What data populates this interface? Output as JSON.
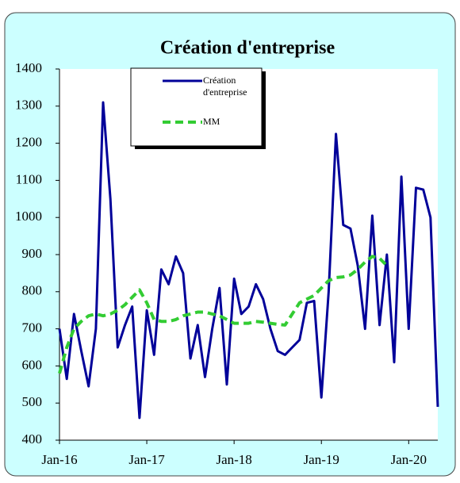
{
  "chart_data": {
    "type": "line",
    "title": "Création d'entreprise",
    "categories": [
      "Jan-16",
      null,
      null,
      null,
      null,
      null,
      null,
      null,
      null,
      null,
      null,
      null,
      "Jan-17",
      null,
      null,
      null,
      null,
      null,
      null,
      null,
      null,
      null,
      null,
      null,
      "Jan-18",
      null,
      null,
      null,
      null,
      null,
      null,
      null,
      null,
      null,
      null,
      null,
      "Jan-19",
      null,
      null,
      null,
      null,
      null,
      null,
      null,
      null,
      null,
      null,
      null,
      "Jan-20",
      null,
      null,
      null,
      null
    ],
    "series": [
      {
        "name": "Création d'entreprise",
        "color": "#000099",
        "dash": false,
        "values": [
          700,
          565,
          740,
          640,
          545,
          700,
          1310,
          1050,
          650,
          710,
          760,
          460,
          750,
          630,
          860,
          820,
          895,
          850,
          620,
          710,
          570,
          700,
          810,
          550,
          835,
          740,
          760,
          820,
          780,
          700,
          640,
          630,
          650,
          670,
          770,
          775,
          515,
          800,
          1225,
          980,
          970,
          870,
          700,
          1005,
          710,
          900,
          610,
          1110,
          700,
          1080,
          1075,
          1000,
          490
        ]
      },
      {
        "name": "MM",
        "color": "#33cc33",
        "dash": true,
        "values": [
          580,
          650,
          700,
          720,
          735,
          740,
          735,
          740,
          750,
          765,
          785,
          805,
          770,
          725,
          720,
          720,
          725,
          735,
          740,
          745,
          745,
          740,
          735,
          725,
          715,
          715,
          715,
          720,
          718,
          715,
          712,
          710,
          740,
          770,
          780,
          790,
          810,
          830,
          838,
          840,
          845,
          860,
          880,
          895,
          890,
          870,
          null,
          null,
          null,
          null,
          null,
          null,
          null
        ]
      }
    ],
    "ylim": [
      400,
      1400
    ],
    "yticks": [
      400,
      500,
      600,
      700,
      800,
      900,
      1000,
      1100,
      1200,
      1300,
      1400
    ]
  }
}
